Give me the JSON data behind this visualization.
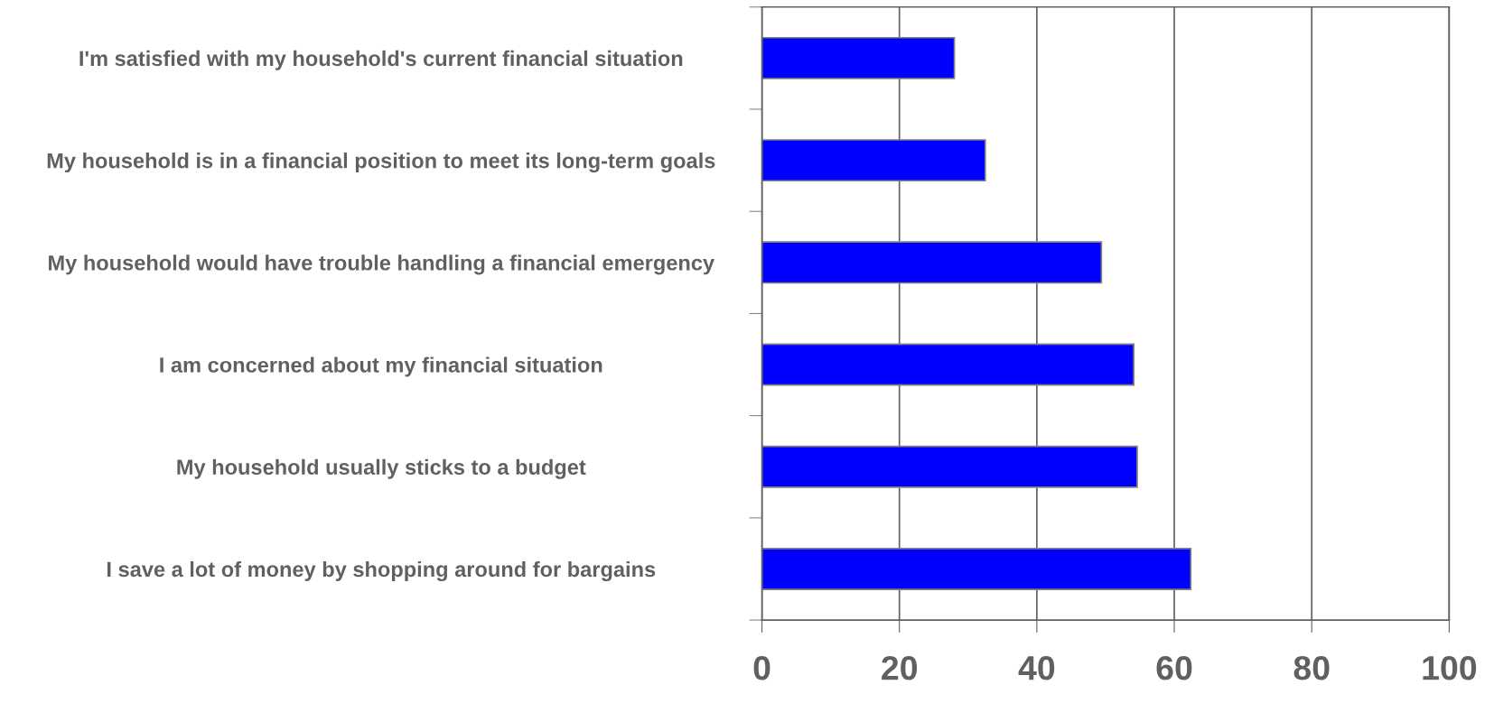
{
  "chart_data": {
    "type": "bar",
    "orientation": "horizontal",
    "categories": [
      "I'm satisfied with my household's current financial situation",
      "My household is in a financial position to meet its long-term goals",
      "My household would have trouble handling a financial emergency",
      "I am concerned about my financial situation",
      "My household usually sticks to a budget",
      "I save a lot of money by shopping around for bargains"
    ],
    "values": [
      28,
      32.5,
      49.4,
      54.1,
      54.6,
      62.4
    ],
    "color": "#0000ff",
    "xlim": [
      0,
      100
    ],
    "xticks": [
      0,
      20,
      40,
      60,
      80,
      100
    ],
    "grid": "x",
    "legend": false
  }
}
